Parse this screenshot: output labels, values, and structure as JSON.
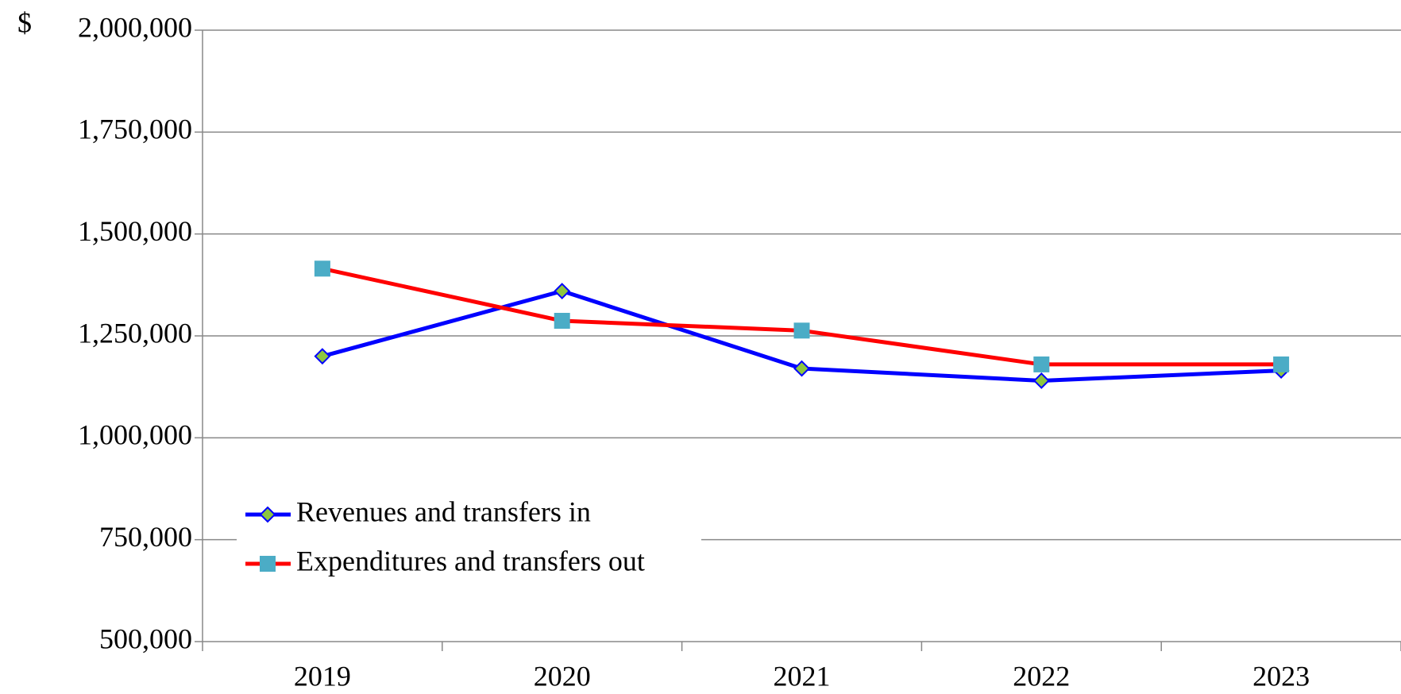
{
  "chart_data": {
    "type": "line",
    "y_unit": "$",
    "categories": [
      "2019",
      "2020",
      "2021",
      "2022",
      "2023"
    ],
    "series": [
      {
        "name": "Revenues and transfers in",
        "color": "#0000ff",
        "marker": "diamond",
        "marker_color": "#8dc63f",
        "values": [
          1200000,
          1360000,
          1170000,
          1140000,
          1165000
        ]
      },
      {
        "name": "Expenditures and transfers out",
        "color": "#ff0000",
        "marker": "square",
        "marker_color": "#4bacc6",
        "values": [
          1415000,
          1287000,
          1263000,
          1180000,
          1180000
        ]
      }
    ],
    "ylim": [
      500000,
      2000000
    ],
    "yticks": [
      {
        "value": 500000,
        "label": "500,000"
      },
      {
        "value": 750000,
        "label": "750,000"
      },
      {
        "value": 1000000,
        "label": "1,000,000"
      },
      {
        "value": 1250000,
        "label": "1,250,000"
      },
      {
        "value": 1500000,
        "label": "1,500,000"
      },
      {
        "value": 1750000,
        "label": "1,750,000"
      },
      {
        "value": 2000000,
        "label": "2,000,000"
      }
    ],
    "grid": true,
    "legend": "lower left"
  }
}
